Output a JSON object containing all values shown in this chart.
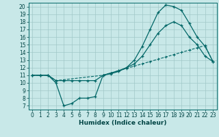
{
  "xlabel": "Humidex (Indice chaleur)",
  "bg_color": "#c8e8e8",
  "grid_color": "#a0c8c8",
  "line_color": "#006666",
  "xlim": [
    -0.5,
    23.5
  ],
  "ylim": [
    6.5,
    20.5
  ],
  "xticks": [
    0,
    1,
    2,
    3,
    4,
    5,
    6,
    7,
    8,
    9,
    10,
    11,
    12,
    13,
    14,
    15,
    16,
    17,
    18,
    19,
    20,
    21,
    22,
    23
  ],
  "yticks": [
    7,
    8,
    9,
    10,
    11,
    12,
    13,
    14,
    15,
    16,
    17,
    18,
    19,
    20
  ],
  "line1_x": [
    0,
    1,
    2,
    3,
    4,
    5,
    6,
    7,
    8,
    9,
    10,
    11,
    12,
    13,
    14,
    15,
    16,
    17,
    18,
    19,
    20,
    21,
    22,
    23
  ],
  "line1_y": [
    11,
    11,
    11,
    10,
    7,
    7.3,
    8,
    8,
    8.2,
    11,
    11.2,
    11.5,
    12,
    13,
    14.8,
    17,
    19.2,
    20.2,
    20,
    19.5,
    17.8,
    16,
    14.8,
    12.8
  ],
  "line2_x": [
    0,
    1,
    2,
    3,
    4,
    5,
    6,
    7,
    8,
    9,
    10,
    11,
    12,
    13,
    14,
    15,
    16,
    17,
    18,
    19,
    20,
    21,
    22,
    23
  ],
  "line2_y": [
    11,
    11,
    11,
    10.3,
    10.3,
    10.3,
    10.3,
    10.3,
    10.3,
    11,
    11.3,
    11.6,
    12,
    12.5,
    13.5,
    15,
    16.5,
    17.5,
    18,
    17.5,
    16,
    15,
    13.5,
    12.8
  ],
  "line3_x": [
    0,
    1,
    2,
    3,
    9,
    10,
    11,
    12,
    13,
    14,
    15,
    16,
    17,
    18,
    19,
    20,
    21,
    22,
    23
  ],
  "line3_y": [
    11,
    11,
    11,
    10.3,
    11,
    11.3,
    11.6,
    11.9,
    12.2,
    12.5,
    12.8,
    13.1,
    13.4,
    13.7,
    14,
    14.3,
    14.6,
    14.9,
    12.8
  ],
  "tick_fontsize": 5.5,
  "xlabel_fontsize": 6.5
}
